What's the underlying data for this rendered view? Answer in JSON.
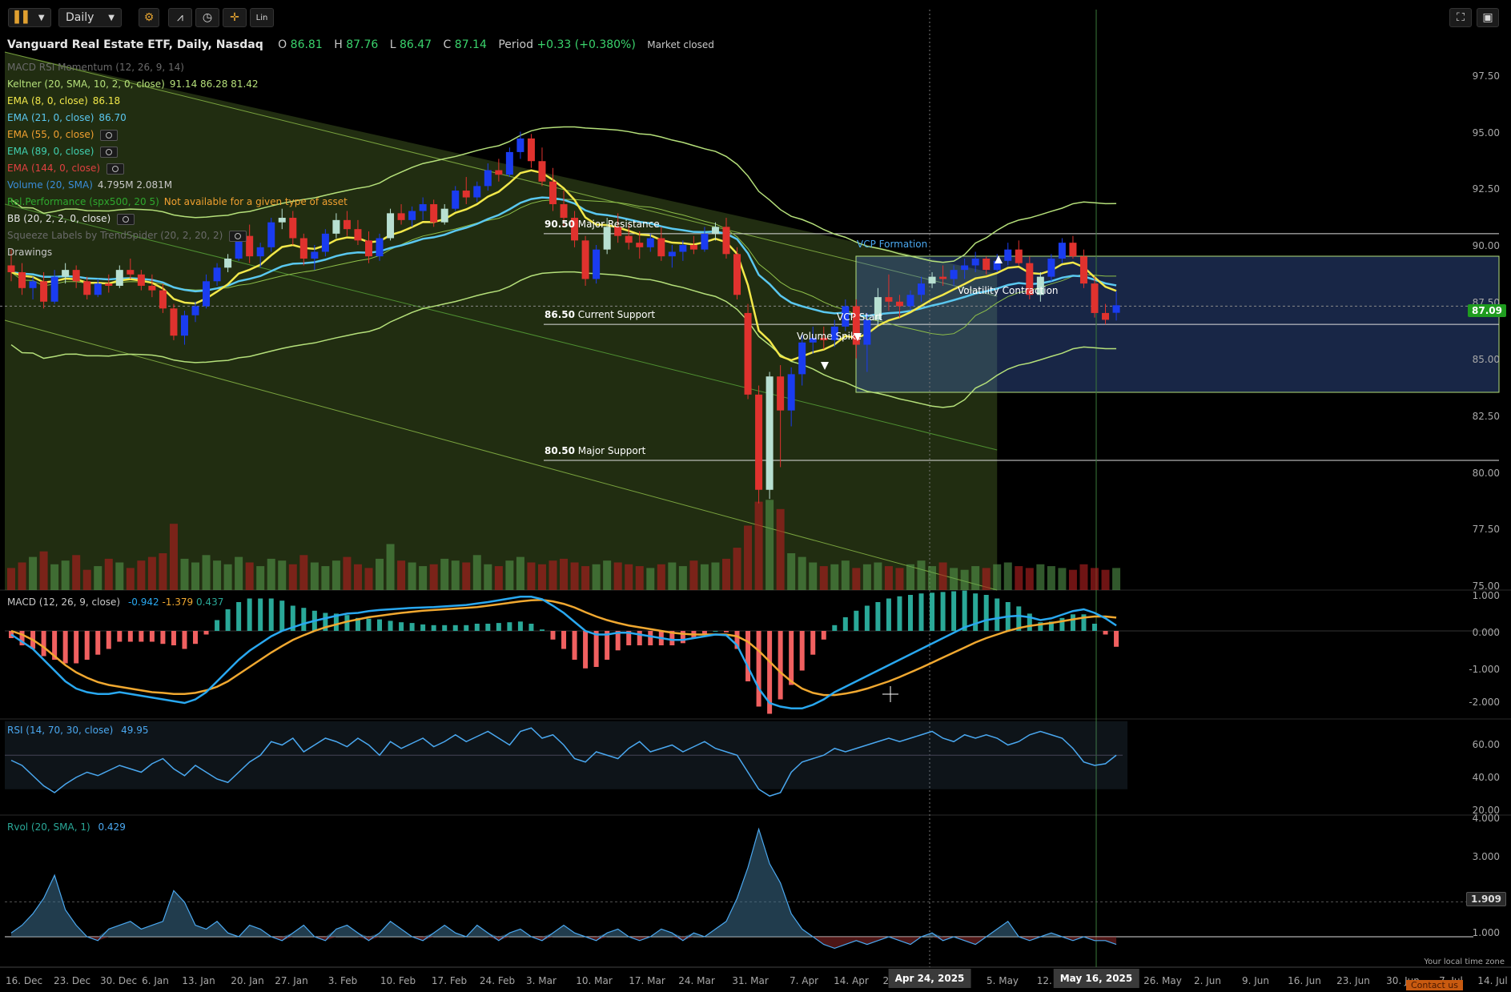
{
  "toolbar": {
    "interval": "Daily",
    "scale_label": "Lin"
  },
  "header": {
    "title": "Vanguard Real Estate ETF, Daily, Nasdaq",
    "o_label": "O",
    "o_value": "86.81",
    "h_label": "H",
    "h_value": "87.76",
    "l_label": "L",
    "l_value": "86.47",
    "c_label": "C",
    "c_value": "87.14",
    "period_label": "Period",
    "period_value": "+0.33 (+0.380%)",
    "status": "Market closed"
  },
  "studies": [
    {
      "name": "MACD RSI Momentum (12, 26, 9, 14)",
      "value": "",
      "color": "#6a6a6a",
      "value_color": "#6a6a6a",
      "eye": false
    },
    {
      "name": "Keltner (20, SMA, 10, 2, 0, close)",
      "value": "91.14 86.28 81.42",
      "color": "#b5e07a",
      "value_color": "#b5e07a",
      "eye": false
    },
    {
      "name": "EMA (8, 0, close)",
      "value": "86.18",
      "color": "#f2e84a",
      "value_color": "#f2e84a",
      "eye": false
    },
    {
      "name": "EMA (21, 0, close)",
      "value": "86.70",
      "color": "#5ac8f0",
      "value_color": "#5ac8f0",
      "eye": false
    },
    {
      "name": "EMA (55, 0, close)",
      "value": "",
      "color": "#f0a030",
      "value_color": "#f0a030",
      "eye": true
    },
    {
      "name": "EMA (89, 0, close)",
      "value": "",
      "color": "#40d0b0",
      "value_color": "#40d0b0",
      "eye": true
    },
    {
      "name": "EMA (144, 0, close)",
      "value": "",
      "color": "#e04040",
      "value_color": "#e04040",
      "eye": true
    },
    {
      "name": "Volume (20, SMA)",
      "value": "4.795M 2.081M",
      "color": "#3a8cd8",
      "value_color": "#c8c8c8",
      "eye": false
    },
    {
      "name": "Rel.Performance (spx500, 20 5)",
      "value": "Not available for a given type of asset",
      "color": "#2ea82e",
      "value_color": "#f0a030",
      "eye": false
    },
    {
      "name": "BB (20, 2, 2, 0, close)",
      "value": "",
      "color": "#e6e6e6",
      "value_color": "#e6e6e6",
      "eye": true
    },
    {
      "name": "Squeeze Labels by TrendSpider (20, 2, 20, 2)",
      "value": "",
      "color": "#6a6a6a",
      "value_color": "#6a6a6a",
      "eye": true
    },
    {
      "name": "Drawings",
      "value": "",
      "color": "#c8c8c8",
      "value_color": "#c8c8c8",
      "eye": false
    }
  ],
  "drawings": {
    "major_resistance": {
      "price": "90.50",
      "label": "Major Resistance",
      "y": 90.3
    },
    "current_support": {
      "price": "86.50",
      "label": "Current Support",
      "y": 86.3
    },
    "major_support": {
      "price": "80.50",
      "label": "Major Support",
      "y": 80.3
    },
    "vcp_formation": "VCP Formation",
    "volatility_contraction": "Volatility Contraction",
    "vcp_start": "VCP Start",
    "volume_spike": "Volume Spike"
  },
  "price_badge": {
    "value": "87.09",
    "color": "#1f9c1f"
  },
  "rvol_badge": {
    "value": "1.909"
  },
  "macd_legend": {
    "name": "MACD (12, 26, 9, close)",
    "v1": "-0.942",
    "v2": "-1.379",
    "v3": "0.437"
  },
  "rsi_legend": {
    "name": "RSI (14, 70, 30, close)",
    "value": "49.95"
  },
  "rvol_legend": {
    "name": "Rvol (20, SMA, 1)",
    "value": "0.429"
  },
  "price_axis": [
    "97.50",
    "95.00",
    "92.50",
    "90.00",
    "87.50",
    "85.00",
    "82.50",
    "80.00",
    "77.50",
    "75.00"
  ],
  "macd_axis": [
    "1.000",
    "0.000",
    "-1.000",
    "-2.000"
  ],
  "rsi_axis": [
    "60.00",
    "40.00",
    "20.00"
  ],
  "rvol_axis": [
    "4.000",
    "3.000",
    "1.000"
  ],
  "x_axis": [
    "16. Dec",
    "23. Dec",
    "30. Dec",
    "6. Jan",
    "13. Jan",
    "20. Jan",
    "27. Jan",
    "3. Feb",
    "10. Feb",
    "17. Feb",
    "24. Feb",
    "3. Mar",
    "10. Mar",
    "17. Mar",
    "24. Mar",
    "31. Mar",
    "7. Apr",
    "14. Apr",
    "21.",
    "5. May",
    "12. Ma",
    "26. May",
    "2. Jun",
    "9. Jun",
    "16. Jun",
    "23. Jun",
    "30. Jun",
    "7. Jul",
    "14. Jul"
  ],
  "crosshair_dates": [
    "Apr 24, 2025",
    "May 16, 2025"
  ],
  "timezone_note": "Your local time zone",
  "contact": "Contact us",
  "colors": {
    "up": "#b8e0d2",
    "up_blue": "#1a3cf0",
    "down": "#e0322e",
    "ema8": "#f2e84a",
    "ema21": "#5ac8f0",
    "keltner": "#b5e07a",
    "macd": "#29a8f0",
    "signal": "#f0a830",
    "hist_up": "#2aa898",
    "hist_down": "#f06060",
    "rsi": "#4aa8f0",
    "rvol": "#4aa8f0"
  },
  "chart_data": {
    "type": "candlestick",
    "title": "Vanguard Real Estate ETF, Daily, Nasdaq",
    "x_start": "16. Dec",
    "ylim": [
      74.8,
      97.5
    ],
    "candles": [
      [
        88.9,
        89.6,
        88.2,
        88.6
      ],
      [
        88.6,
        89.0,
        87.6,
        87.9
      ],
      [
        87.9,
        88.4,
        87.4,
        88.2
      ],
      [
        88.2,
        88.6,
        87.0,
        87.3
      ],
      [
        87.3,
        88.7,
        87.2,
        88.4
      ],
      [
        88.4,
        89.0,
        88.1,
        88.7
      ],
      [
        88.7,
        88.9,
        87.9,
        88.2
      ],
      [
        88.2,
        88.4,
        87.4,
        87.6
      ],
      [
        87.6,
        88.3,
        87.5,
        88.1
      ],
      [
        88.1,
        88.5,
        87.7,
        88.0
      ],
      [
        88.0,
        88.9,
        87.9,
        88.7
      ],
      [
        88.7,
        89.2,
        88.3,
        88.5
      ],
      [
        88.5,
        88.7,
        87.8,
        88.0
      ],
      [
        88.0,
        88.5,
        87.5,
        87.8
      ],
      [
        87.8,
        88.1,
        86.8,
        87.0
      ],
      [
        87.0,
        87.2,
        85.6,
        85.8
      ],
      [
        85.8,
        86.9,
        85.4,
        86.7
      ],
      [
        86.7,
        87.3,
        86.4,
        87.1
      ],
      [
        87.1,
        88.5,
        87.0,
        88.2
      ],
      [
        88.2,
        89.0,
        88.0,
        88.8
      ],
      [
        88.8,
        89.4,
        88.6,
        89.2
      ],
      [
        89.2,
        90.4,
        89.1,
        90.2
      ],
      [
        90.2,
        90.7,
        89.0,
        89.3
      ],
      [
        89.3,
        89.9,
        88.8,
        89.7
      ],
      [
        89.7,
        91.0,
        89.5,
        90.8
      ],
      [
        90.8,
        91.4,
        90.5,
        91.0
      ],
      [
        91.0,
        91.3,
        89.8,
        90.1
      ],
      [
        90.1,
        90.3,
        88.9,
        89.2
      ],
      [
        89.2,
        89.8,
        88.7,
        89.5
      ],
      [
        89.5,
        90.5,
        89.3,
        90.3
      ],
      [
        90.3,
        91.2,
        90.1,
        90.9
      ],
      [
        90.9,
        91.3,
        90.2,
        90.5
      ],
      [
        90.5,
        90.9,
        89.8,
        90.0
      ],
      [
        90.0,
        90.4,
        89.0,
        89.3
      ],
      [
        89.3,
        90.3,
        89.1,
        90.1
      ],
      [
        90.1,
        91.4,
        90.0,
        91.2
      ],
      [
        91.2,
        91.6,
        90.7,
        90.9
      ],
      [
        90.9,
        91.5,
        90.6,
        91.3
      ],
      [
        91.3,
        91.9,
        90.9,
        91.6
      ],
      [
        91.6,
        91.8,
        90.6,
        90.8
      ],
      [
        90.8,
        91.6,
        90.7,
        91.4
      ],
      [
        91.4,
        92.4,
        91.3,
        92.2
      ],
      [
        92.2,
        92.8,
        91.6,
        91.9
      ],
      [
        91.9,
        92.6,
        91.7,
        92.4
      ],
      [
        92.4,
        93.4,
        92.2,
        93.1
      ],
      [
        93.1,
        93.6,
        92.6,
        92.9
      ],
      [
        92.9,
        94.1,
        92.8,
        93.9
      ],
      [
        93.9,
        94.8,
        93.6,
        94.5
      ],
      [
        94.5,
        94.7,
        93.2,
        93.5
      ],
      [
        93.5,
        94.1,
        92.4,
        92.6
      ],
      [
        92.6,
        93.2,
        91.3,
        91.6
      ],
      [
        91.6,
        92.2,
        90.6,
        91.0
      ],
      [
        91.0,
        91.3,
        89.7,
        90.0
      ],
      [
        90.0,
        90.2,
        88.0,
        88.3
      ],
      [
        88.3,
        89.8,
        88.1,
        89.6
      ],
      [
        89.6,
        91.0,
        89.4,
        90.6
      ],
      [
        90.6,
        91.2,
        89.9,
        90.2
      ],
      [
        90.2,
        90.7,
        89.6,
        89.9
      ],
      [
        89.9,
        90.4,
        89.2,
        89.7
      ],
      [
        89.7,
        90.3,
        89.5,
        90.1
      ],
      [
        90.1,
        90.6,
        89.1,
        89.3
      ],
      [
        89.3,
        89.8,
        88.8,
        89.5
      ],
      [
        89.5,
        90.0,
        89.1,
        89.8
      ],
      [
        89.8,
        90.2,
        89.4,
        89.6
      ],
      [
        89.6,
        90.6,
        89.5,
        90.3
      ],
      [
        90.3,
        90.8,
        90.0,
        90.6
      ],
      [
        90.6,
        91.0,
        89.2,
        89.4
      ],
      [
        89.4,
        89.7,
        87.4,
        87.6
      ],
      [
        86.8,
        87.2,
        83.0,
        83.2
      ],
      [
        83.2,
        83.6,
        78.4,
        79.0
      ],
      [
        79.0,
        84.2,
        78.6,
        84.0
      ],
      [
        84.0,
        84.5,
        80.0,
        82.5
      ],
      [
        82.5,
        84.4,
        81.8,
        84.1
      ],
      [
        84.1,
        85.9,
        83.6,
        85.5
      ],
      [
        85.5,
        86.2,
        85.0,
        85.7
      ],
      [
        85.7,
        86.2,
        85.2,
        85.6
      ],
      [
        85.6,
        86.5,
        85.3,
        86.2
      ],
      [
        86.2,
        87.4,
        86.0,
        87.1
      ],
      [
        87.1,
        87.4,
        84.8,
        85.4
      ],
      [
        85.4,
        86.8,
        84.2,
        86.5
      ],
      [
        86.5,
        87.9,
        86.2,
        87.5
      ],
      [
        87.5,
        88.5,
        86.9,
        87.3
      ],
      [
        87.3,
        87.6,
        86.6,
        87.1
      ],
      [
        87.1,
        87.8,
        86.9,
        87.6
      ],
      [
        87.6,
        88.4,
        87.3,
        88.1
      ],
      [
        88.1,
        88.6,
        87.9,
        88.4
      ],
      [
        88.4,
        88.9,
        88.0,
        88.3
      ],
      [
        88.3,
        88.9,
        88.0,
        88.7
      ],
      [
        88.7,
        89.2,
        88.3,
        88.9
      ],
      [
        88.9,
        89.5,
        88.6,
        89.2
      ],
      [
        89.2,
        89.3,
        88.5,
        88.7
      ],
      [
        88.7,
        89.4,
        88.6,
        89.1
      ],
      [
        89.1,
        89.9,
        88.9,
        89.6
      ],
      [
        89.6,
        90.0,
        88.9,
        89.0
      ],
      [
        89.0,
        89.3,
        87.4,
        87.6
      ],
      [
        87.6,
        88.6,
        87.3,
        88.4
      ],
      [
        88.4,
        89.4,
        88.2,
        89.2
      ],
      [
        89.2,
        90.1,
        89.0,
        89.9
      ],
      [
        89.9,
        90.2,
        89.2,
        89.3
      ],
      [
        89.3,
        89.6,
        87.9,
        88.1
      ],
      [
        88.1,
        88.4,
        86.6,
        86.8
      ],
      [
        86.8,
        87.2,
        86.3,
        86.5
      ],
      [
        86.81,
        87.76,
        86.47,
        87.14
      ]
    ],
    "volume": [
      1.2,
      1.5,
      1.8,
      2.1,
      1.4,
      1.6,
      1.9,
      1.1,
      1.3,
      1.7,
      1.5,
      1.2,
      1.6,
      1.8,
      2.0,
      3.6,
      1.7,
      1.5,
      1.9,
      1.6,
      1.4,
      1.8,
      1.5,
      1.3,
      1.7,
      1.6,
      1.4,
      1.9,
      1.5,
      1.3,
      1.6,
      1.8,
      1.4,
      1.2,
      1.7,
      2.5,
      1.6,
      1.5,
      1.3,
      1.4,
      1.7,
      1.6,
      1.5,
      1.9,
      1.4,
      1.3,
      1.6,
      1.8,
      1.5,
      1.4,
      1.6,
      1.7,
      1.5,
      1.3,
      1.4,
      1.6,
      1.5,
      1.4,
      1.3,
      1.2,
      1.4,
      1.5,
      1.3,
      1.6,
      1.4,
      1.5,
      1.7,
      2.3,
      3.5,
      4.8,
      4.9,
      4.4,
      2.0,
      1.8,
      1.5,
      1.3,
      1.4,
      1.6,
      1.2,
      1.4,
      1.5,
      1.3,
      1.2,
      1.4,
      1.6,
      1.3,
      1.5,
      1.2,
      1.1,
      1.3,
      1.2,
      1.4,
      1.5,
      1.3,
      1.2,
      1.4,
      1.3,
      1.2,
      1.1,
      1.4,
      1.2,
      1.1,
      1.2
    ],
    "macd": [
      -0.1,
      -0.3,
      -0.5,
      -0.8,
      -1.1,
      -1.4,
      -1.6,
      -1.7,
      -1.75,
      -1.75,
      -1.7,
      -1.75,
      -1.8,
      -1.85,
      -1.9,
      -1.95,
      -2.0,
      -1.9,
      -1.7,
      -1.4,
      -1.1,
      -0.8,
      -0.55,
      -0.35,
      -0.15,
      0.0,
      0.1,
      0.2,
      0.28,
      0.35,
      0.42,
      0.48,
      0.5,
      0.55,
      0.58,
      0.6,
      0.62,
      0.64,
      0.65,
      0.66,
      0.68,
      0.7,
      0.72,
      0.76,
      0.8,
      0.85,
      0.9,
      0.95,
      0.95,
      0.88,
      0.7,
      0.5,
      0.25,
      0.0,
      -0.1,
      -0.1,
      -0.05,
      -0.05,
      -0.1,
      -0.15,
      -0.2,
      -0.25,
      -0.25,
      -0.2,
      -0.15,
      -0.1,
      -0.12,
      -0.4,
      -1.0,
      -1.6,
      -2.0,
      -2.1,
      -2.15,
      -2.15,
      -2.05,
      -1.9,
      -1.7,
      -1.55,
      -1.4,
      -1.25,
      -1.1,
      -0.95,
      -0.8,
      -0.65,
      -0.5,
      -0.35,
      -0.2,
      -0.05,
      0.1,
      0.2,
      0.3,
      0.35,
      0.4,
      0.42,
      0.38,
      0.3,
      0.35,
      0.45,
      0.55,
      0.6,
      0.5,
      0.35,
      0.15
    ],
    "signal": [
      0.0,
      -0.1,
      -0.25,
      -0.45,
      -0.7,
      -0.95,
      -1.15,
      -1.3,
      -1.42,
      -1.5,
      -1.55,
      -1.6,
      -1.65,
      -1.7,
      -1.72,
      -1.75,
      -1.75,
      -1.72,
      -1.65,
      -1.55,
      -1.4,
      -1.2,
      -1.0,
      -0.8,
      -0.6,
      -0.42,
      -0.25,
      -0.12,
      0.0,
      0.1,
      0.18,
      0.26,
      0.32,
      0.38,
      0.42,
      0.46,
      0.5,
      0.53,
      0.56,
      0.58,
      0.6,
      0.62,
      0.64,
      0.66,
      0.7,
      0.74,
      0.78,
      0.82,
      0.85,
      0.86,
      0.82,
      0.75,
      0.65,
      0.52,
      0.4,
      0.3,
      0.22,
      0.15,
      0.1,
      0.05,
      0.0,
      -0.05,
      -0.08,
      -0.1,
      -0.1,
      -0.1,
      -0.1,
      -0.15,
      -0.3,
      -0.55,
      -0.85,
      -1.15,
      -1.4,
      -1.6,
      -1.72,
      -1.78,
      -1.78,
      -1.74,
      -1.68,
      -1.6,
      -1.5,
      -1.4,
      -1.28,
      -1.15,
      -1.02,
      -0.88,
      -0.74,
      -0.6,
      -0.46,
      -0.32,
      -0.2,
      -0.1,
      0.0,
      0.08,
      0.14,
      0.18,
      0.22,
      0.27,
      0.32,
      0.37,
      0.4,
      0.4,
      0.37
    ],
    "rsi": [
      47,
      44,
      38,
      32,
      28,
      33,
      37,
      40,
      38,
      41,
      44,
      42,
      40,
      45,
      48,
      42,
      38,
      44,
      40,
      36,
      34,
      40,
      46,
      50,
      58,
      56,
      60,
      52,
      56,
      60,
      58,
      55,
      60,
      56,
      50,
      58,
      54,
      57,
      60,
      55,
      58,
      62,
      58,
      61,
      64,
      60,
      56,
      64,
      66,
      60,
      62,
      56,
      48,
      46,
      52,
      50,
      48,
      54,
      58,
      52,
      54,
      56,
      52,
      55,
      58,
      54,
      52,
      50,
      40,
      30,
      26,
      28,
      40,
      46,
      48,
      50,
      54,
      52,
      54,
      56,
      58,
      60,
      58,
      60,
      62,
      64,
      60,
      58,
      62,
      60,
      62,
      60,
      56,
      58,
      62,
      64,
      62,
      60,
      54,
      46,
      44,
      45,
      50
    ],
    "rvol": [
      1.1,
      1.3,
      1.6,
      2.0,
      2.6,
      1.7,
      1.3,
      1.0,
      0.9,
      1.2,
      1.3,
      1.4,
      1.2,
      1.3,
      1.4,
      2.2,
      1.9,
      1.3,
      1.2,
      1.4,
      1.1,
      1.0,
      1.3,
      1.2,
      1.0,
      0.9,
      1.1,
      1.3,
      1.0,
      0.9,
      1.2,
      1.3,
      1.1,
      0.9,
      1.1,
      1.4,
      1.2,
      1.0,
      0.9,
      1.1,
      1.3,
      1.1,
      1.0,
      1.3,
      1.1,
      0.9,
      1.1,
      1.2,
      1.0,
      0.9,
      1.1,
      1.3,
      1.1,
      1.0,
      0.9,
      1.1,
      1.2,
      1.0,
      0.9,
      1.0,
      1.2,
      1.1,
      0.9,
      1.1,
      1.0,
      1.2,
      1.4,
      2.0,
      2.8,
      3.8,
      2.9,
      2.4,
      1.6,
      1.2,
      1.0,
      0.8,
      0.7,
      0.8,
      0.9,
      0.8,
      0.9,
      1.0,
      0.9,
      0.8,
      1.0,
      1.1,
      0.9,
      1.0,
      0.9,
      0.8,
      1.0,
      1.2,
      1.4,
      1.0,
      0.9,
      1.0,
      1.1,
      1.0,
      0.9,
      1.0,
      0.9,
      0.9,
      0.8
    ]
  }
}
